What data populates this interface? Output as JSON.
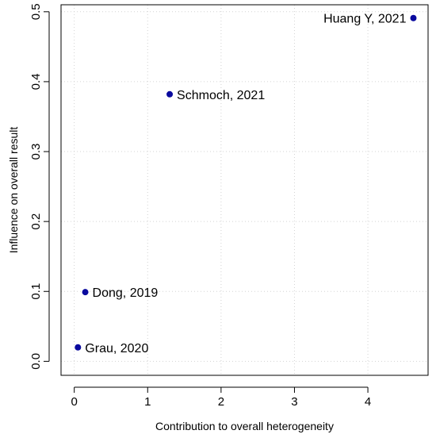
{
  "chart_data": {
    "type": "scatter",
    "title": "",
    "xlabel": "Contribution to overall heterogeneity",
    "ylabel": "Influence on overall result",
    "xlim": [
      -0.18,
      4.82
    ],
    "ylim": [
      -0.02,
      0.51
    ],
    "x_ticks": [
      0,
      1,
      2,
      3,
      4
    ],
    "y_ticks": [
      0.0,
      0.1,
      0.2,
      0.3,
      0.4,
      0.5
    ],
    "x_tick_labels": [
      "0",
      "1",
      "2",
      "3",
      "4"
    ],
    "y_tick_labels": [
      "0.0",
      "0.1",
      "0.2",
      "0.3",
      "0.4",
      "0.5"
    ],
    "grid": true,
    "point_color": "#0a0a9e",
    "points": [
      {
        "label": "Grau, 2020",
        "x": 0.05,
        "y": 0.02,
        "label_side": "right"
      },
      {
        "label": "Dong, 2019",
        "x": 0.15,
        "y": 0.099,
        "label_side": "right"
      },
      {
        "label": "Schmoch, 2021",
        "x": 1.3,
        "y": 0.382,
        "label_side": "right"
      },
      {
        "label": "Huang Y, 2021",
        "x": 4.62,
        "y": 0.491,
        "label_side": "left"
      }
    ]
  }
}
